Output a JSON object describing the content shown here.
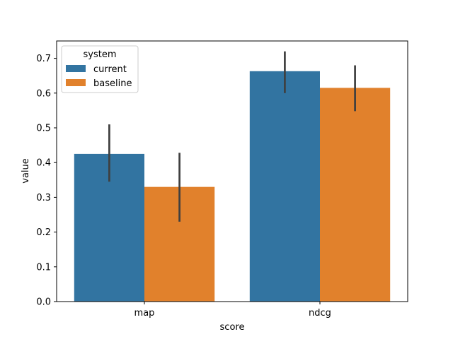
{
  "chart_data": {
    "type": "bar",
    "title": "",
    "xlabel": "score",
    "ylabel": "value",
    "ylim": [
      0,
      0.75
    ],
    "yticks": [
      0.0,
      0.1,
      0.2,
      0.3,
      0.4,
      0.5,
      0.6,
      0.7
    ],
    "ytick_labels": [
      "0.0",
      "0.1",
      "0.2",
      "0.3",
      "0.4",
      "0.5",
      "0.6",
      "0.7"
    ],
    "categories": [
      "map",
      "ndcg"
    ],
    "legend": {
      "title": "system",
      "placement": "top-left"
    },
    "grid": false,
    "series": [
      {
        "name": "current",
        "color": "#3274a1",
        "values": [
          0.425,
          0.663
        ],
        "error_low": [
          0.345,
          0.6
        ],
        "error_high": [
          0.51,
          0.72
        ]
      },
      {
        "name": "baseline",
        "color": "#e1812c",
        "values": [
          0.33,
          0.615
        ],
        "error_low": [
          0.23,
          0.548
        ],
        "error_high": [
          0.428,
          0.68
        ]
      }
    ],
    "error_bar_color": "#3f3f3f"
  }
}
